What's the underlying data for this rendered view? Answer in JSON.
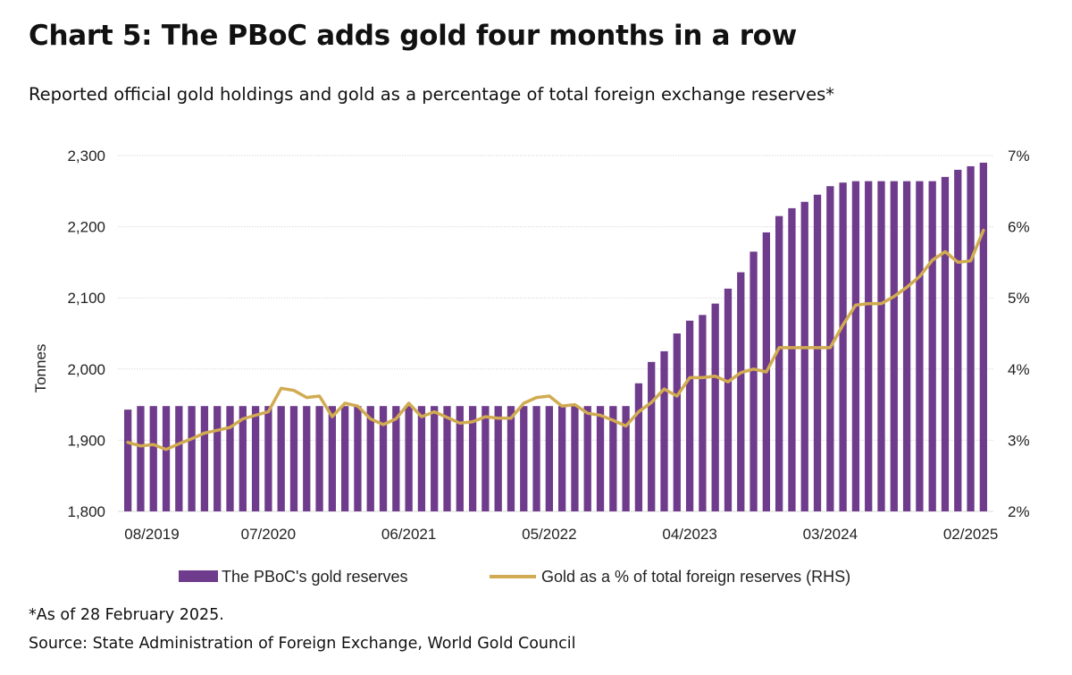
{
  "title": "Chart 5: The PBoC adds gold four months in a row",
  "subtitle": "Reported official gold holdings and gold as a percentage of total foreign exchange reserves*",
  "footnote": "*As of 28 February 2025.",
  "source": "Source: State Administration of Foreign Exchange, World Gold Council",
  "colors": {
    "bars": "#6f3b8c",
    "line": "#d1ab51",
    "grid": "#d9d9d9",
    "text": "#222222"
  },
  "chart_data": {
    "type": "bar",
    "ylabel": "Tonnes",
    "y_left": {
      "ylim": [
        1800,
        2300
      ],
      "ticks": [
        1800,
        1900,
        2000,
        2100,
        2200,
        2300
      ],
      "tick_labels": [
        "1,800",
        "1,900",
        "2,000",
        "2,100",
        "2,200",
        "2,300"
      ]
    },
    "y_right": {
      "ylim": [
        2,
        7
      ],
      "ticks": [
        2,
        3,
        4,
        5,
        6,
        7
      ],
      "tick_labels": [
        "2%",
        "3%",
        "4%",
        "5%",
        "6%",
        "7%"
      ]
    },
    "x_tick_labels": [
      {
        "index": 0,
        "label": "08/2019"
      },
      {
        "index": 11,
        "label": "07/2020"
      },
      {
        "index": 22,
        "label": "06/2021"
      },
      {
        "index": 33,
        "label": "05/2022"
      },
      {
        "index": 44,
        "label": "04/2023"
      },
      {
        "index": 55,
        "label": "03/2024"
      },
      {
        "index": 66,
        "label": "02/2025"
      }
    ],
    "grid": true,
    "legend_position": "bottom",
    "series": [
      {
        "name": "The PBoC's gold reserves",
        "type": "bar",
        "axis": "left",
        "values": [
          1943,
          1948,
          1948,
          1948,
          1948,
          1948,
          1948,
          1948,
          1948,
          1948,
          1948,
          1948,
          1948,
          1948,
          1948,
          1948,
          1948,
          1948,
          1948,
          1948,
          1948,
          1948,
          1948,
          1948,
          1948,
          1948,
          1948,
          1948,
          1948,
          1948,
          1948,
          1948,
          1948,
          1948,
          1948,
          1948,
          1948,
          1948,
          1948,
          1948,
          1980,
          2010,
          2025,
          2050,
          2068,
          2076,
          2092,
          2113,
          2136,
          2165,
          2192,
          2215,
          2226,
          2235,
          2245,
          2257,
          2262,
          2264,
          2264,
          2264,
          2264,
          2264,
          2264,
          2264,
          2270,
          2280,
          2285,
          2290
        ]
      },
      {
        "name": "Gold as a % of total foreign reserves (RHS)",
        "type": "line",
        "axis": "right",
        "values": [
          2.97,
          2.92,
          2.94,
          2.87,
          2.95,
          3.02,
          3.1,
          3.14,
          3.18,
          3.3,
          3.35,
          3.4,
          3.73,
          3.7,
          3.6,
          3.62,
          3.33,
          3.52,
          3.48,
          3.3,
          3.22,
          3.3,
          3.52,
          3.33,
          3.4,
          3.32,
          3.24,
          3.26,
          3.33,
          3.31,
          3.31,
          3.52,
          3.6,
          3.62,
          3.48,
          3.5,
          3.38,
          3.35,
          3.28,
          3.2,
          3.4,
          3.53,
          3.72,
          3.62,
          3.88,
          3.88,
          3.9,
          3.82,
          3.95,
          4.0,
          3.96,
          4.3,
          4.3,
          4.3,
          4.3,
          4.3,
          4.62,
          4.9,
          4.92,
          4.92,
          5.02,
          5.15,
          5.3,
          5.53,
          5.65,
          5.5,
          5.52,
          5.95
        ]
      }
    ]
  }
}
